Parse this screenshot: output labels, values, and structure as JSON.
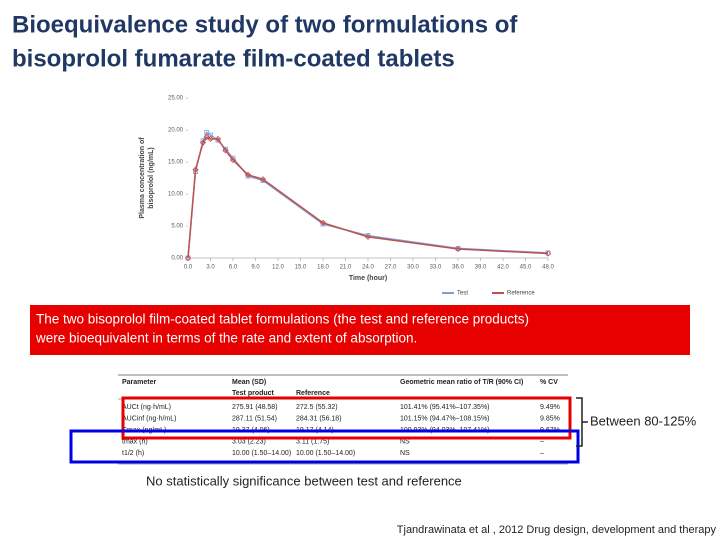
{
  "title": [
    "Bioequivalence study of two formulations of",
    "bisoprolol fumarate film-coated tablets"
  ],
  "chart_data": {
    "type": "line",
    "y_label": [
      "Plasma concentration of",
      "bisoprolol (ng/mL)"
    ],
    "x_label": "Time (hour)",
    "x": [
      0,
      1,
      2,
      2.5,
      3,
      4,
      5,
      6,
      8,
      10,
      18,
      24,
      36,
      48
    ],
    "series": [
      {
        "name": "Test",
        "color": "#7f9fd5",
        "marker": "square",
        "values": [
          0,
          13.5,
          18.3,
          19.6,
          19.2,
          18.4,
          17.0,
          15.6,
          12.8,
          12.1,
          5.3,
          3.5,
          1.5,
          0.8
        ]
      },
      {
        "name": "Reference",
        "color": "#c0504d",
        "marker": "diamond",
        "values": [
          0,
          13.8,
          18.0,
          18.9,
          18.6,
          18.6,
          16.8,
          15.3,
          13.0,
          12.3,
          5.5,
          3.3,
          1.4,
          0.7
        ]
      }
    ],
    "xlim": [
      0,
      48
    ],
    "ylim": [
      0,
      25
    ],
    "xticks": [
      {
        "value": 0,
        "label": "0.0"
      },
      {
        "value": 3,
        "label": "3.0"
      },
      {
        "value": 6,
        "label": "6.0"
      },
      {
        "value": 9,
        "label": "9.0"
      },
      {
        "value": 12,
        "label": "12.0"
      },
      {
        "value": 15,
        "label": "15.0"
      },
      {
        "value": 18,
        "label": "18.0"
      },
      {
        "value": 21,
        "label": "21.0"
      },
      {
        "value": 24,
        "label": "24.0"
      },
      {
        "value": 27,
        "label": "27.0"
      },
      {
        "value": 30,
        "label": "30.0"
      },
      {
        "value": 33,
        "label": "33.0"
      },
      {
        "value": 36,
        "label": "36.0"
      },
      {
        "value": 39,
        "label": "39.0"
      },
      {
        "value": 42,
        "label": "42.0"
      },
      {
        "value": 45,
        "label": "45.0"
      },
      {
        "value": 48,
        "label": "48.0"
      }
    ],
    "yticks": [
      {
        "value": 0,
        "label": "0.00"
      },
      {
        "value": 5,
        "label": "5.00"
      },
      {
        "value": 10,
        "label": "10.00"
      },
      {
        "value": 15,
        "label": "15.00"
      },
      {
        "value": 20,
        "label": "20.00"
      },
      {
        "value": 25,
        "label": "25.00"
      }
    ]
  },
  "callout": [
    "The two bisoprolol film-coated tablet formulations (the test and reference products)",
    "were bioequivalent in terms of the rate and extent of absorption."
  ],
  "table": {
    "columns": [
      "Parameter",
      "Mean (SD)",
      "Geometric mean ratio of T/R (90% CI)",
      "% CV"
    ],
    "subcolumns": [
      "Test product",
      "Reference"
    ],
    "rows": [
      [
        "AUCt (ng·h/mL)",
        "275.91 (48.58)",
        "272.5 (55.32)",
        "101.41% (95.41%–107.35%)",
        "9.49%"
      ],
      [
        "AUCinf (ng·h/mL)",
        "287.11 (51.54)",
        "284.31 (56.18)",
        "101.15% (94.47%–108.15%)",
        "9.85%"
      ],
      [
        "Cmax (ng/mL)",
        "19.37 (4.06)",
        "19.17 (4.14)",
        "100.93% (94.03%–107.41%)",
        "9.67%"
      ],
      [
        "tmax (h)",
        "3.03 (2.23)",
        "3.11 (1.75)",
        "NS",
        "–"
      ],
      [
        "t1/2 (h)",
        "10.00 (1.50–14.00)",
        "10.00 (1.50–14.00)",
        "NS",
        "–"
      ]
    ]
  },
  "bracket_note": "Between 80-125%",
  "bottom_note": "No statistically significance between test and reference",
  "citation": "Tjandrawinata et al , 2012 Drug design, development and therapy"
}
